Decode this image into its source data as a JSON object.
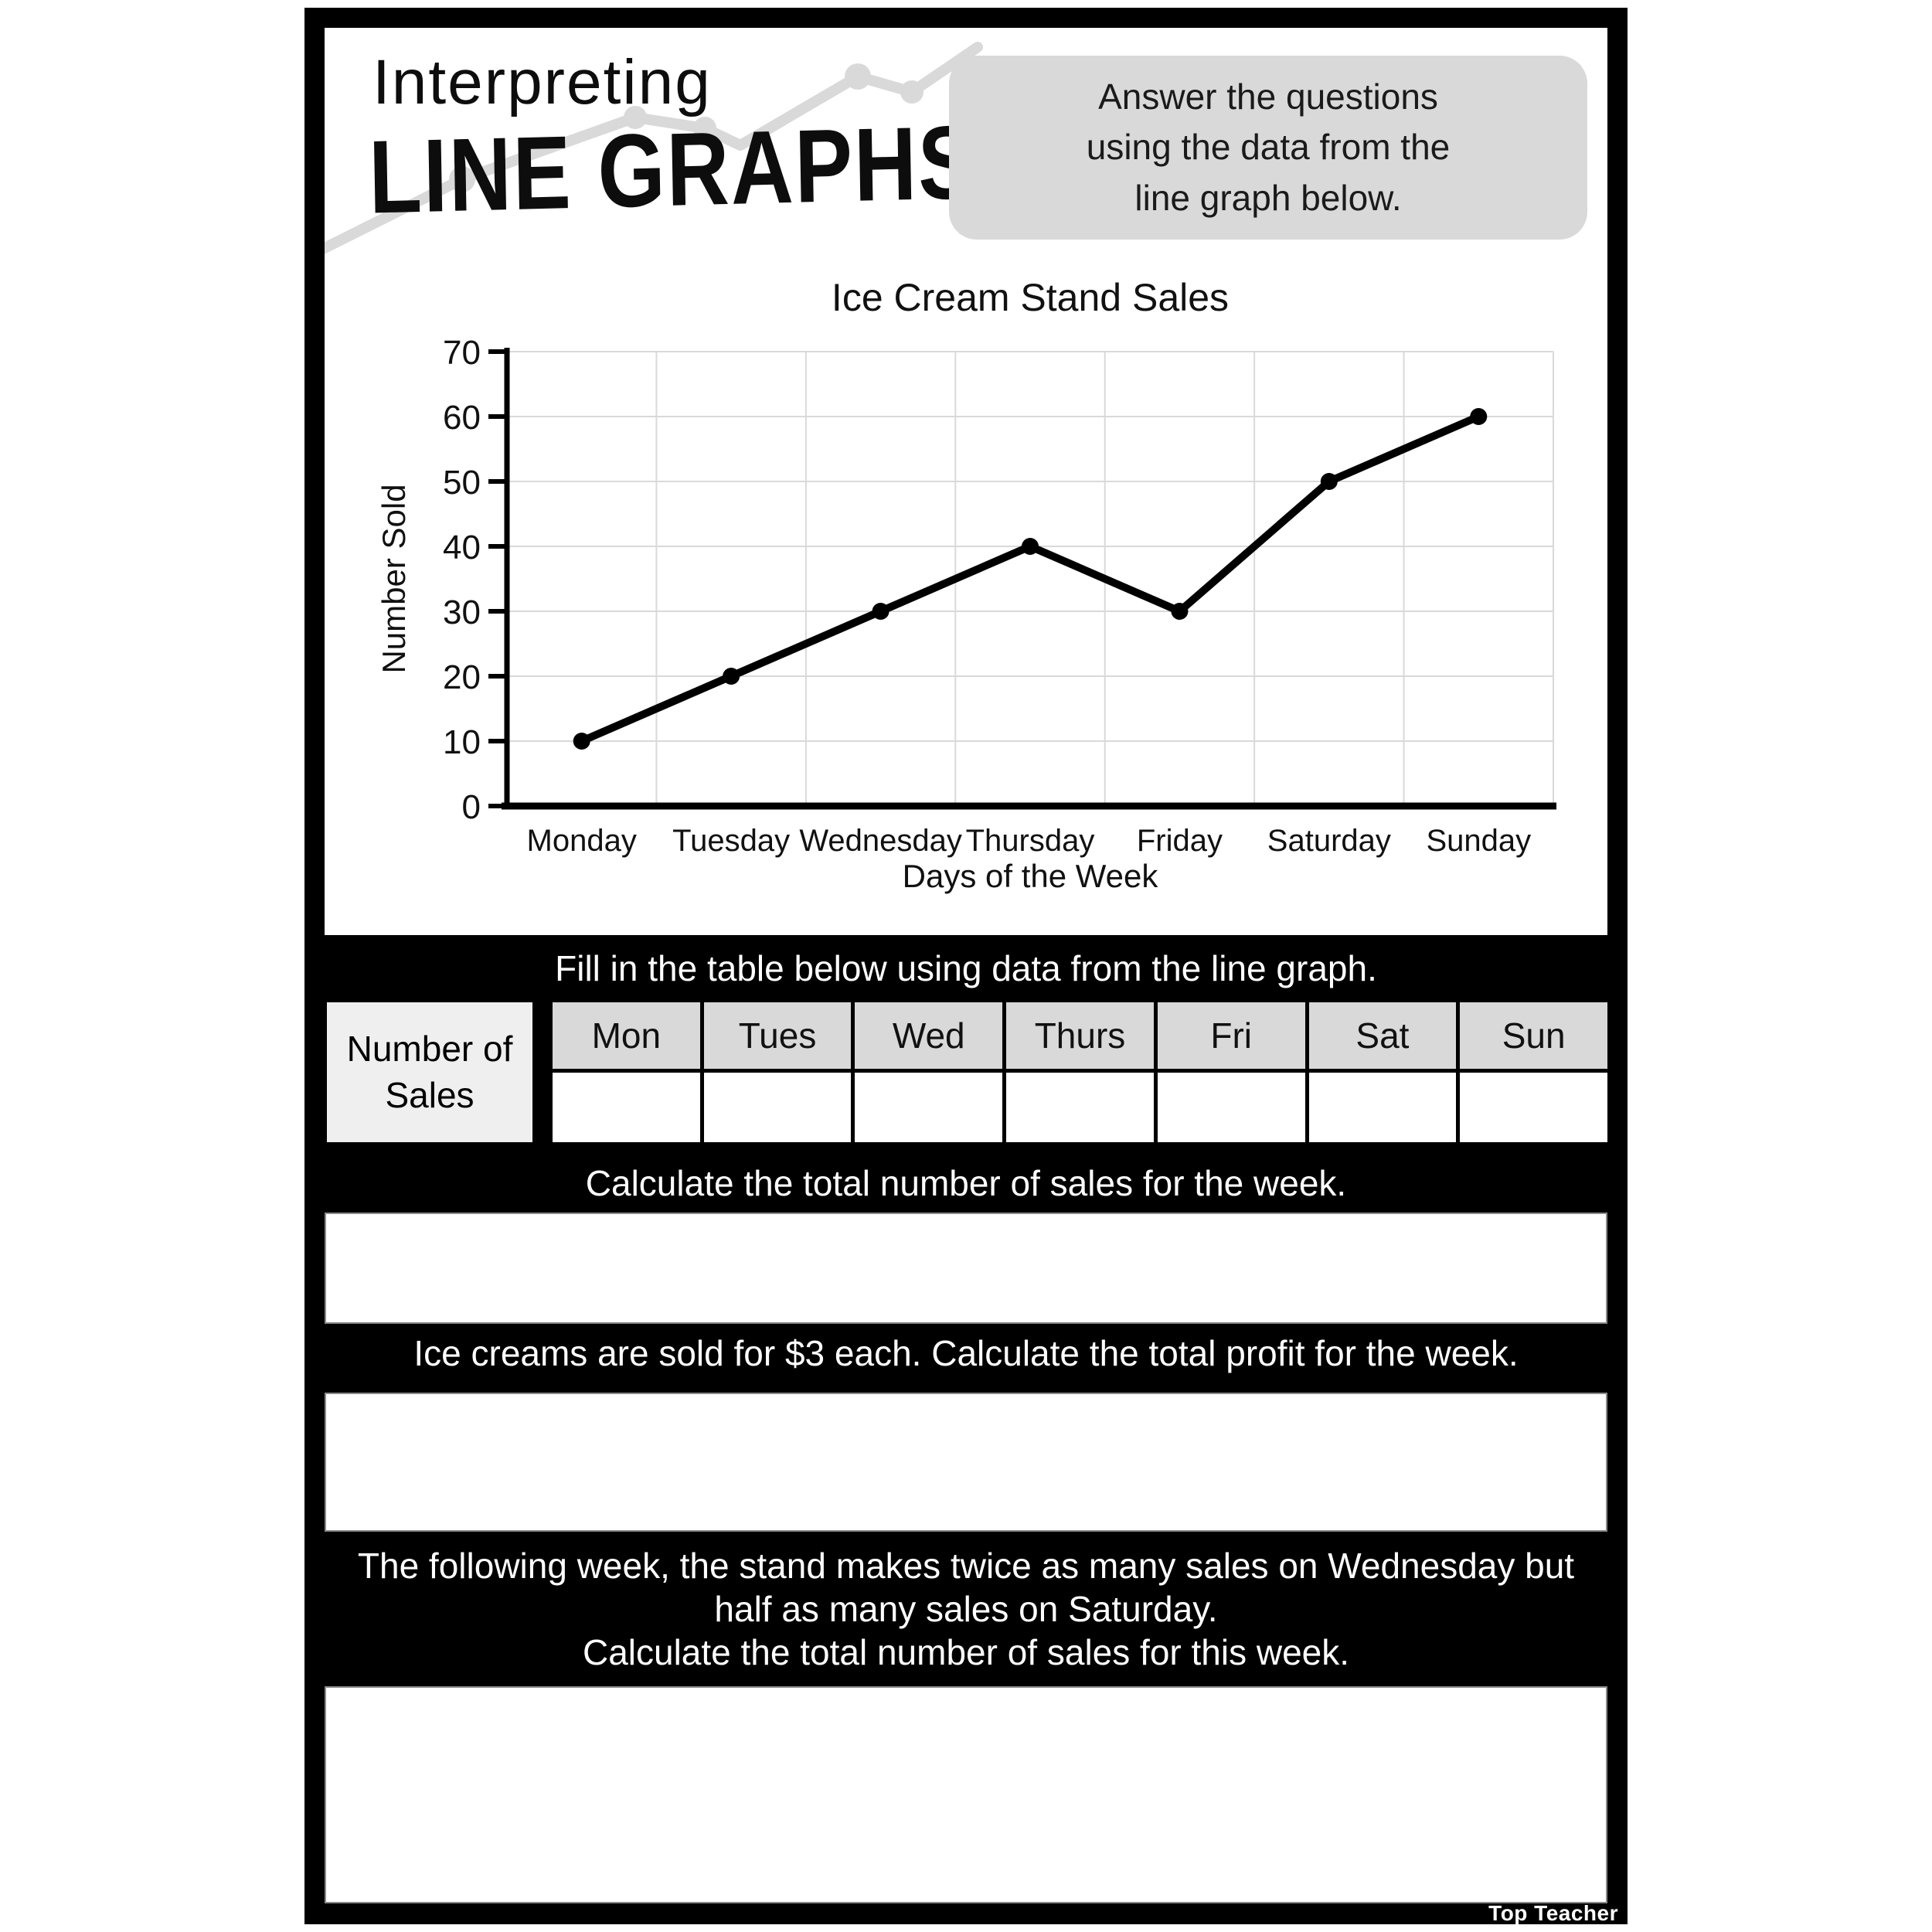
{
  "page": {
    "title_line1": "Interpreting",
    "title_line2": "LINE GRAPHS",
    "instruction_lines": [
      "Answer the questions",
      "using the data from the",
      "line graph below."
    ],
    "watermark": "Top Teacher"
  },
  "chart_data": {
    "type": "line",
    "title": "Ice Cream Stand Sales",
    "xlabel": "Days of the Week",
    "ylabel": "Number Sold",
    "categories": [
      "Monday",
      "Tuesday",
      "Wednesday",
      "Thursday",
      "Friday",
      "Saturday",
      "Sunday"
    ],
    "values": [
      10,
      20,
      30,
      40,
      30,
      50,
      60
    ],
    "ylim": [
      0,
      70
    ],
    "ytick_step": 10,
    "grid": true,
    "legend": false,
    "line_color": "#000000",
    "gridline_color": "#d9d9d9",
    "marker": "circle"
  },
  "sections": {
    "table_prompt": "Fill in the table below using data from the line graph.",
    "table": {
      "row_header_lines": [
        "Number of",
        "Sales"
      ],
      "columns": [
        "Mon",
        "Tues",
        "Wed",
        "Thurs",
        "Fri",
        "Sat",
        "Sun"
      ],
      "cells": [
        "",
        "",
        "",
        "",
        "",
        "",
        ""
      ]
    },
    "q1": "Calculate the total number of sales for the week.",
    "q2": "Ice creams are sold for $3 each. Calculate the total profit for the week.",
    "q3_lines": [
      "The following week, the stand makes twice as many sales on Wednesday but",
      "half as many sales on Saturday.",
      "Calculate the total number of sales for this week."
    ]
  },
  "colors": {
    "band_black": "#000000",
    "panel_gray": "#d9d9d9",
    "row_header_gray": "#efefef",
    "grid_gray": "#d9d9d9",
    "box_border_gray": "#8a8a8a",
    "white": "#ffffff"
  }
}
